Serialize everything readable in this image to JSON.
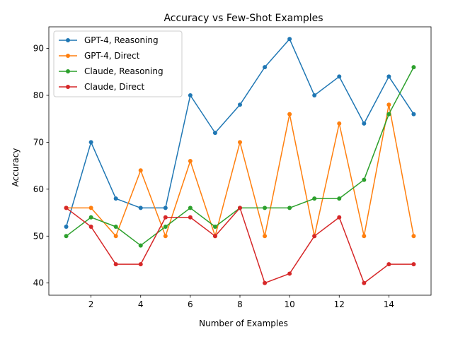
{
  "chart_data": {
    "type": "line",
    "title": "Accuracy vs Few-Shot Examples",
    "xlabel": "Number of Examples",
    "ylabel": "Accuracy",
    "x": [
      1,
      2,
      3,
      4,
      5,
      6,
      7,
      8,
      9,
      10,
      11,
      12,
      13,
      14,
      15
    ],
    "xlim": [
      0.3,
      15.7
    ],
    "ylim": [
      37.4,
      94.6
    ],
    "xticks": [
      2,
      4,
      6,
      8,
      10,
      12,
      14
    ],
    "yticks": [
      40,
      50,
      60,
      70,
      80,
      90
    ],
    "grid": false,
    "legend_position": "top-left",
    "series": [
      {
        "name": "GPT-4, Reasoning",
        "color": "#1f77b4",
        "values": [
          52,
          70,
          58,
          56,
          56,
          80,
          72,
          78,
          86,
          92,
          80,
          84,
          74,
          84,
          76
        ]
      },
      {
        "name": "GPT-4, Direct",
        "color": "#ff7f0e",
        "values": [
          56,
          56,
          50,
          64,
          50,
          66,
          50,
          70,
          50,
          76,
          50,
          74,
          50,
          78,
          50
        ]
      },
      {
        "name": "Claude, Reasoning",
        "color": "#2ca02c",
        "values": [
          50,
          54,
          52,
          48,
          52,
          56,
          52,
          56,
          56,
          56,
          58,
          58,
          62,
          76,
          86
        ]
      },
      {
        "name": "Claude, Direct",
        "color": "#d62728",
        "values": [
          56,
          52,
          44,
          44,
          54,
          54,
          50,
          56,
          40,
          42,
          50,
          54,
          40,
          44,
          44
        ]
      }
    ]
  }
}
